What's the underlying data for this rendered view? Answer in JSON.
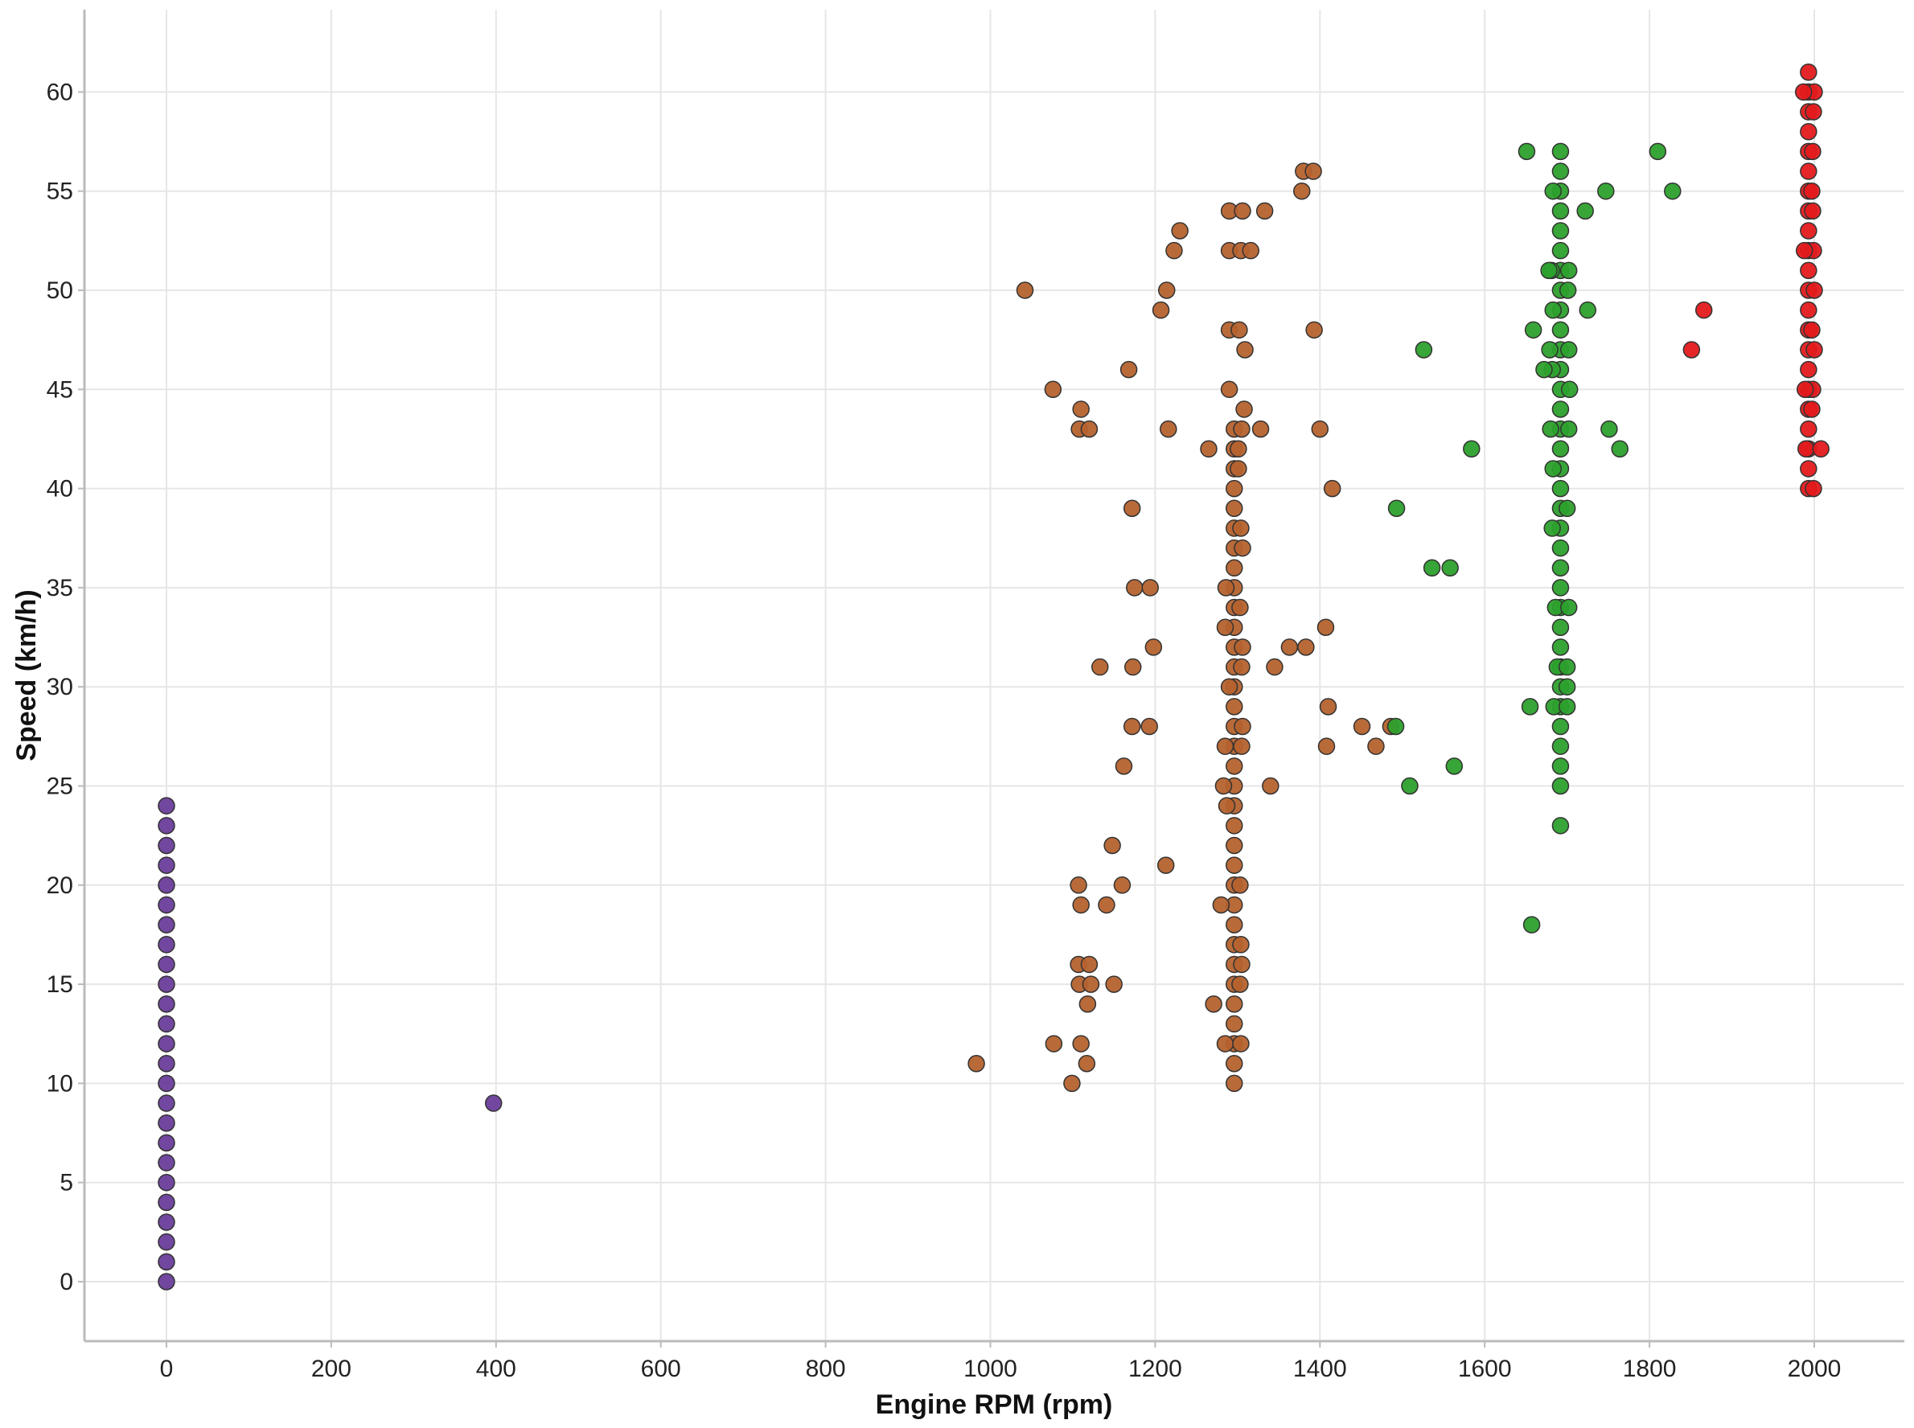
{
  "colors": {
    "idle": "#6a3d9a",
    "low": "#b5622e",
    "mid": "#2ca02c",
    "high": "#e31a1c",
    "point_stroke": "#333333",
    "grid": "#e6e6e6",
    "axis": "#bbbbbb"
  },
  "chart_data": {
    "type": "scatter",
    "title": "",
    "xlabel": "Engine RPM (rpm)",
    "ylabel": "Speed (km/h)",
    "xlim": [
      -100,
      2100
    ],
    "ylim": [
      -3,
      64
    ],
    "x_ticks": [
      0,
      200,
      400,
      600,
      800,
      1000,
      1200,
      1400,
      1600,
      1800,
      2000
    ],
    "y_ticks": [
      0,
      5,
      10,
      15,
      20,
      25,
      30,
      35,
      40,
      45,
      50,
      55,
      60
    ],
    "grid": true,
    "legend": "none",
    "series": [
      {
        "color_key": "idle",
        "points": [
          [
            0,
            0
          ],
          [
            0,
            1
          ],
          [
            0,
            2
          ],
          [
            0,
            3
          ],
          [
            0,
            4
          ],
          [
            0,
            5
          ],
          [
            0,
            6
          ],
          [
            0,
            7
          ],
          [
            0,
            8
          ],
          [
            0,
            9
          ],
          [
            0,
            10
          ],
          [
            0,
            11
          ],
          [
            0,
            12
          ],
          [
            0,
            13
          ],
          [
            0,
            14
          ],
          [
            0,
            15
          ],
          [
            0,
            16
          ],
          [
            0,
            17
          ],
          [
            0,
            18
          ],
          [
            0,
            19
          ],
          [
            0,
            20
          ],
          [
            0,
            21
          ],
          [
            0,
            22
          ],
          [
            0,
            23
          ],
          [
            0,
            24
          ],
          [
            397,
            9
          ]
        ]
      },
      {
        "color_key": "low",
        "points": [
          [
            1296,
            10
          ],
          [
            1296,
            11
          ],
          [
            1296,
            12
          ],
          [
            1296,
            13
          ],
          [
            1296,
            14
          ],
          [
            1296,
            15
          ],
          [
            1296,
            16
          ],
          [
            1296,
            17
          ],
          [
            1296,
            18
          ],
          [
            1296,
            19
          ],
          [
            1296,
            20
          ],
          [
            1296,
            21
          ],
          [
            1296,
            22
          ],
          [
            1296,
            23
          ],
          [
            1296,
            24
          ],
          [
            1296,
            25
          ],
          [
            1296,
            26
          ],
          [
            1296,
            27
          ],
          [
            1296,
            28
          ],
          [
            1296,
            29
          ],
          [
            1296,
            30
          ],
          [
            1296,
            31
          ],
          [
            1296,
            32
          ],
          [
            1296,
            33
          ],
          [
            1296,
            34
          ],
          [
            1296,
            35
          ],
          [
            1296,
            36
          ],
          [
            1296,
            37
          ],
          [
            1296,
            38
          ],
          [
            1296,
            39
          ],
          [
            1296,
            40
          ],
          [
            1296,
            41
          ],
          [
            1296,
            42
          ],
          [
            1296,
            43
          ],
          [
            1290,
            45
          ],
          [
            1290,
            48
          ],
          [
            1290,
            52
          ],
          [
            1290,
            54
          ],
          [
            1285,
            12
          ],
          [
            1280,
            19
          ],
          [
            1283,
            25
          ],
          [
            1285,
            27
          ],
          [
            1285,
            33
          ],
          [
            1286,
            35
          ],
          [
            1287,
            24
          ],
          [
            1290,
            30
          ],
          [
            1304,
            12
          ],
          [
            1303,
            15
          ],
          [
            1305,
            16
          ],
          [
            1304,
            17
          ],
          [
            1303,
            20
          ],
          [
            1305,
            27
          ],
          [
            1306,
            28
          ],
          [
            1305,
            31
          ],
          [
            1306,
            32
          ],
          [
            1303,
            34
          ],
          [
            1304,
            38
          ],
          [
            1305,
            43
          ],
          [
            1302,
            48
          ],
          [
            1304,
            52
          ],
          [
            1306,
            54
          ],
          [
            1316,
            52
          ],
          [
            1309,
            47
          ],
          [
            1308,
            44
          ],
          [
            1301,
            41
          ],
          [
            1301,
            42
          ],
          [
            1306,
            37
          ],
          [
            1271,
            14
          ],
          [
            1265,
            42
          ],
          [
            1333,
            54
          ],
          [
            1340,
            25
          ],
          [
            1345,
            31
          ],
          [
            1328,
            43
          ],
          [
            1363,
            32
          ],
          [
            1378,
            55
          ],
          [
            1380,
            56
          ],
          [
            1392,
            56
          ],
          [
            1383,
            32
          ],
          [
            1393,
            48
          ],
          [
            1400,
            43
          ],
          [
            1407,
            33
          ],
          [
            1410,
            29
          ],
          [
            1408,
            27
          ],
          [
            1415,
            40
          ],
          [
            1451,
            28
          ],
          [
            1468,
            27
          ],
          [
            1486,
            28
          ],
          [
            983,
            11
          ],
          [
            1042,
            50
          ],
          [
            1076,
            45
          ],
          [
            1077,
            12
          ],
          [
            1099,
            10
          ],
          [
            1107,
            20
          ],
          [
            1110,
            44
          ],
          [
            1108,
            43
          ],
          [
            1110,
            19
          ],
          [
            1107,
            16
          ],
          [
            1108,
            15
          ],
          [
            1110,
            12
          ],
          [
            1117,
            11
          ],
          [
            1118,
            14
          ],
          [
            1120,
            43
          ],
          [
            1120,
            16
          ],
          [
            1122,
            15
          ],
          [
            1133,
            31
          ],
          [
            1141,
            19
          ],
          [
            1148,
            22
          ],
          [
            1150,
            15
          ],
          [
            1160,
            20
          ],
          [
            1162,
            26
          ],
          [
            1168,
            46
          ],
          [
            1172,
            39
          ],
          [
            1172,
            28
          ],
          [
            1173,
            31
          ],
          [
            1175,
            35
          ],
          [
            1193,
            28
          ],
          [
            1194,
            35
          ],
          [
            1198,
            32
          ],
          [
            1207,
            49
          ],
          [
            1213,
            21
          ],
          [
            1214,
            50
          ],
          [
            1216,
            43
          ],
          [
            1223,
            52
          ],
          [
            1230,
            53
          ]
        ]
      },
      {
        "color_key": "mid",
        "points": [
          [
            1692,
            23
          ],
          [
            1692,
            25
          ],
          [
            1692,
            26
          ],
          [
            1692,
            27
          ],
          [
            1692,
            28
          ],
          [
            1692,
            29
          ],
          [
            1692,
            30
          ],
          [
            1692,
            31
          ],
          [
            1692,
            32
          ],
          [
            1692,
            33
          ],
          [
            1692,
            34
          ],
          [
            1692,
            35
          ],
          [
            1692,
            36
          ],
          [
            1692,
            37
          ],
          [
            1692,
            38
          ],
          [
            1692,
            39
          ],
          [
            1692,
            40
          ],
          [
            1692,
            41
          ],
          [
            1692,
            42
          ],
          [
            1692,
            43
          ],
          [
            1692,
            44
          ],
          [
            1692,
            45
          ],
          [
            1692,
            46
          ],
          [
            1692,
            47
          ],
          [
            1692,
            48
          ],
          [
            1692,
            49
          ],
          [
            1692,
            50
          ],
          [
            1692,
            51
          ],
          [
            1692,
            52
          ],
          [
            1692,
            53
          ],
          [
            1692,
            54
          ],
          [
            1692,
            55
          ],
          [
            1692,
            56
          ],
          [
            1692,
            57
          ],
          [
            1684,
            29
          ],
          [
            1688,
            31
          ],
          [
            1686,
            34
          ],
          [
            1682,
            38
          ],
          [
            1683,
            41
          ],
          [
            1680,
            43
          ],
          [
            1682,
            46
          ],
          [
            1679,
            47
          ],
          [
            1683,
            49
          ],
          [
            1681,
            51
          ],
          [
            1683,
            55
          ],
          [
            1700,
            29
          ],
          [
            1700,
            31
          ],
          [
            1702,
            34
          ],
          [
            1700,
            39
          ],
          [
            1702,
            43
          ],
          [
            1703,
            45
          ],
          [
            1702,
            47
          ],
          [
            1702,
            51
          ],
          [
            1700,
            30
          ],
          [
            1701,
            50
          ],
          [
            1678,
            51
          ],
          [
            1672,
            46
          ],
          [
            1659,
            48
          ],
          [
            1657,
            18
          ],
          [
            1655,
            29
          ],
          [
            1651,
            57
          ],
          [
            1493,
            39
          ],
          [
            1492,
            28
          ],
          [
            1509,
            25
          ],
          [
            1526,
            47
          ],
          [
            1536,
            36
          ],
          [
            1558,
            36
          ],
          [
            1563,
            26
          ],
          [
            1584,
            42
          ],
          [
            1722,
            54
          ],
          [
            1725,
            49
          ],
          [
            1747,
            55
          ],
          [
            1751,
            43
          ],
          [
            1764,
            42
          ],
          [
            1810,
            57
          ],
          [
            1828,
            55
          ]
        ]
      },
      {
        "color_key": "high",
        "points": [
          [
            1993,
            40
          ],
          [
            1993,
            41
          ],
          [
            1993,
            42
          ],
          [
            1993,
            43
          ],
          [
            1993,
            44
          ],
          [
            1993,
            45
          ],
          [
            1993,
            46
          ],
          [
            1993,
            47
          ],
          [
            1993,
            48
          ],
          [
            1993,
            49
          ],
          [
            1993,
            50
          ],
          [
            1993,
            51
          ],
          [
            1993,
            52
          ],
          [
            1993,
            53
          ],
          [
            1993,
            54
          ],
          [
            1993,
            55
          ],
          [
            1993,
            56
          ],
          [
            1993,
            57
          ],
          [
            1993,
            58
          ],
          [
            1993,
            59
          ],
          [
            1993,
            60
          ],
          [
            1993,
            61
          ],
          [
            1999,
            40
          ],
          [
            1997,
            44
          ],
          [
            1998,
            45
          ],
          [
            2000,
            47
          ],
          [
            1997,
            48
          ],
          [
            2000,
            50
          ],
          [
            1999,
            52
          ],
          [
            1998,
            54
          ],
          [
            1997,
            55
          ],
          [
            1998,
            57
          ],
          [
            1999,
            59
          ],
          [
            2000,
            60
          ],
          [
            1987,
            60
          ],
          [
            1988,
            52
          ],
          [
            1989,
            45
          ],
          [
            1990,
            42
          ],
          [
            2008,
            42
          ],
          [
            1851,
            47
          ],
          [
            1866,
            49
          ]
        ]
      }
    ]
  }
}
